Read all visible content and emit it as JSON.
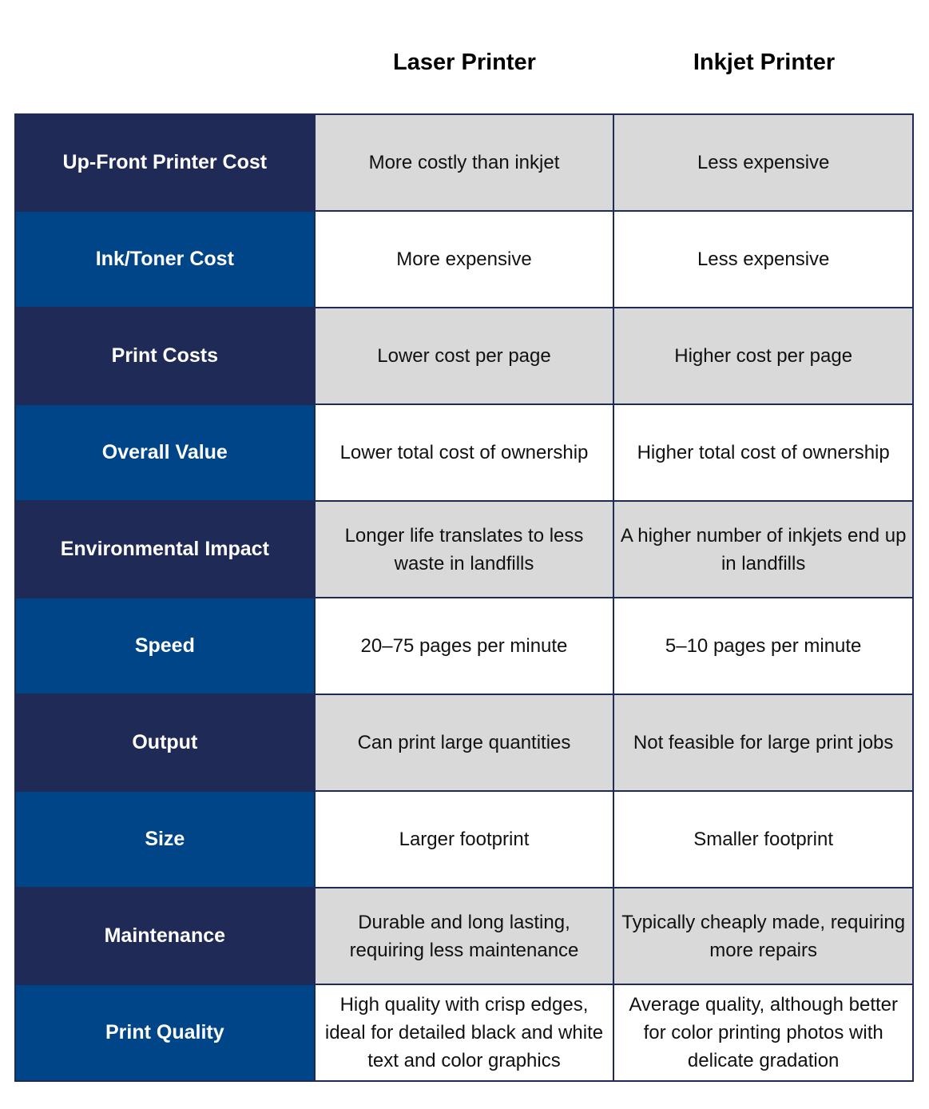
{
  "headers": [
    "Laser Printer",
    "Inkjet Printer"
  ],
  "rows": [
    {
      "label": "Up-Front Printer Cost",
      "laser": "More costly than inkjet",
      "inkjet": "Less expensive"
    },
    {
      "label": "Ink/Toner Cost",
      "laser": "More expensive",
      "inkjet": "Less expensive"
    },
    {
      "label": "Print Costs",
      "laser": "Lower cost per page",
      "inkjet": "Higher cost per page"
    },
    {
      "label": "Overall Value",
      "laser": "Lower total cost of ownership",
      "inkjet": "Higher total cost of ownership"
    },
    {
      "label": "Environmental Impact",
      "laser": "Longer life translates to less waste in landfills",
      "inkjet": "A higher number of inkjets end up in landfills"
    },
    {
      "label": "Speed",
      "laser": "20–75 pages per minute",
      "inkjet": "5–10 pages per minute"
    },
    {
      "label": "Output",
      "laser": "Can print large quantities",
      "inkjet": "Not feasible for large print jobs"
    },
    {
      "label": "Size",
      "laser": "Larger footprint",
      "inkjet": "Smaller footprint"
    },
    {
      "label": "Maintenance",
      "laser": "Durable and long lasting, requiring less maintenance",
      "inkjet": "Typically cheaply made, requiring more repairs"
    },
    {
      "label": "Print Quality",
      "laser": "High quality with crisp edges, ideal for detailed black and white text and color graphics",
      "inkjet": "Average quality, although better for color printing photos with delicate gradation"
    }
  ],
  "colors": {
    "label_dark": "#1f2a56",
    "label_blue": "#004587",
    "stripe": "#d9d9d9",
    "border": "#1f2a56"
  }
}
